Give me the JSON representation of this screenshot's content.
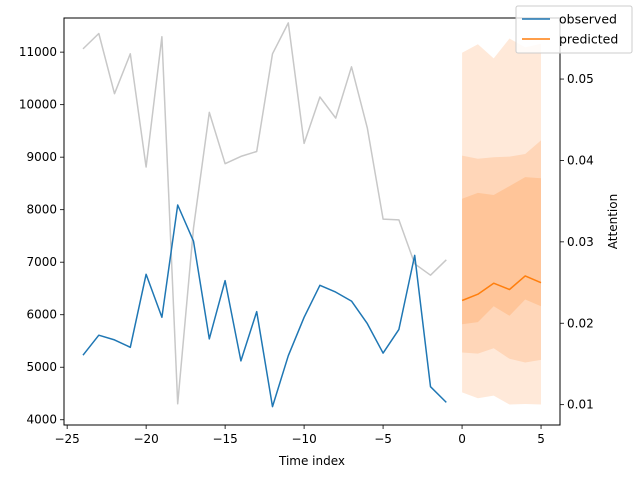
{
  "chart_data": {
    "type": "line",
    "xlabel": "Time index",
    "ylabel": "",
    "y2label": "Attention",
    "xlim": [
      -25.2,
      6.2
    ],
    "ylim": [
      3900,
      11650
    ],
    "y2lim": [
      0.0075,
      0.0575
    ],
    "xticks": [
      -25,
      -20,
      -15,
      -10,
      -5,
      0,
      5
    ],
    "yticks": [
      4000,
      5000,
      6000,
      7000,
      8000,
      9000,
      10000,
      11000
    ],
    "y2ticks": [
      0.01,
      0.02,
      0.03,
      0.04,
      0.05
    ],
    "grid": false,
    "legend_position": "top-right",
    "series": [
      {
        "name": "observed",
        "color": "#1f77b4",
        "axis": "left",
        "x": [
          -24,
          -23,
          -22,
          -21,
          -20,
          -19,
          -18,
          -17,
          -16,
          -15,
          -14,
          -13,
          -12,
          -11,
          -10,
          -9,
          -8,
          -7,
          -6,
          -5,
          -4,
          -3,
          -2,
          -1
        ],
        "values": [
          5230,
          5610,
          5520,
          5380,
          6770,
          5950,
          8090,
          7400,
          5540,
          6650,
          5120,
          6060,
          4250,
          5220,
          5950,
          6560,
          6430,
          6260,
          5830,
          5270,
          5720,
          7130,
          4630,
          4330
        ]
      },
      {
        "name": "predicted",
        "color": "#ff7f0e",
        "axis": "left",
        "x": [
          0,
          1,
          2,
          3,
          4,
          5
        ],
        "values": [
          6270,
          6390,
          6600,
          6480,
          6740,
          6610
        ]
      },
      {
        "name": "",
        "color": "#c8c8c8",
        "axis": "right",
        "x": [
          -24,
          -23,
          -22,
          -21,
          -20,
          -19,
          -18,
          -17,
          -16,
          -15,
          -14,
          -13,
          -12,
          -11,
          -10,
          -9,
          -8,
          -7,
          -6,
          -5,
          -4,
          -3,
          -2,
          -1
        ],
        "values": [
          0.0537,
          0.0556,
          0.0482,
          0.0531,
          0.0392,
          0.0552,
          0.0101,
          0.0317,
          0.0459,
          0.0396,
          0.0405,
          0.0411,
          0.0531,
          0.0569,
          0.0421,
          0.0478,
          0.0452,
          0.0515,
          0.044,
          0.0328,
          0.0327,
          0.0273,
          0.0259,
          0.0278
        ]
      }
    ],
    "bands": [
      {
        "color": "#ffe9d9",
        "x": [
          0,
          1,
          2,
          3,
          4,
          5
        ],
        "lower": [
          4520,
          4410,
          4460,
          4290,
          4300,
          4290
        ],
        "upper": [
          10990,
          11150,
          10880,
          11260,
          11090,
          11160
        ]
      },
      {
        "color": "#ffd6b8",
        "x": [
          0,
          1,
          2,
          3,
          4,
          5
        ],
        "lower": [
          5280,
          5260,
          5360,
          5160,
          5090,
          5140
        ],
        "upper": [
          9030,
          8970,
          9000,
          9010,
          9060,
          9320
        ]
      },
      {
        "color": "#ffc599",
        "x": [
          0,
          1,
          2,
          3,
          4,
          5
        ],
        "lower": [
          5820,
          5860,
          6160,
          5980,
          6290,
          6160
        ],
        "upper": [
          8210,
          8320,
          8280,
          8450,
          8620,
          8600
        ]
      }
    ]
  }
}
